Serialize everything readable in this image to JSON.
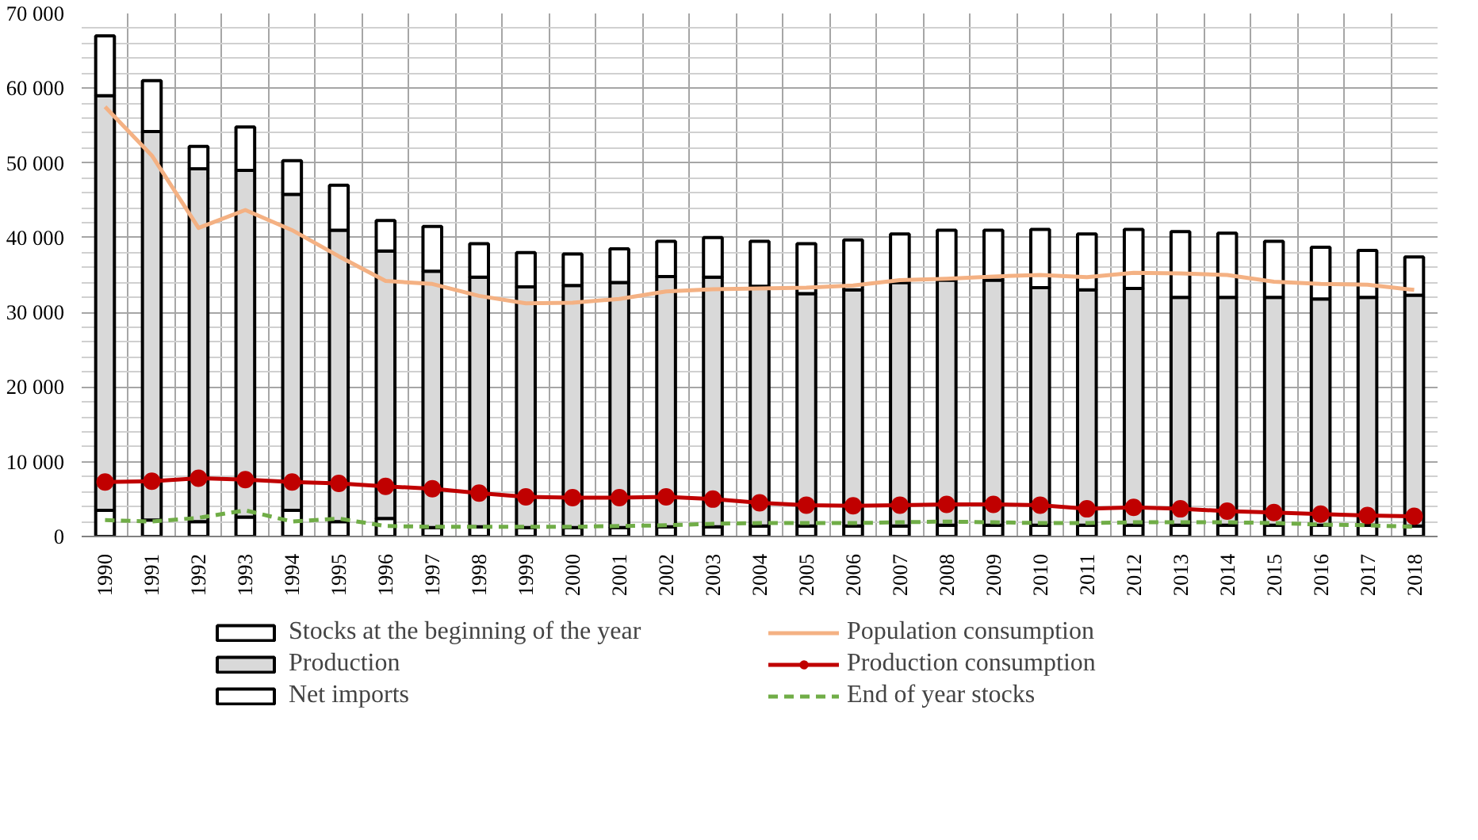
{
  "chart_data": {
    "type": "bar",
    "stacked": true,
    "categories": [
      "1990",
      "1991",
      "1992",
      "1993",
      "1994",
      "1995",
      "1996",
      "1997",
      "1998",
      "1999",
      "2000",
      "2001",
      "2002",
      "2003",
      "2004",
      "2005",
      "2006",
      "2007",
      "2008",
      "2009",
      "2010",
      "2011",
      "2012",
      "2013",
      "2014",
      "2015",
      "2016",
      "2017",
      "2018"
    ],
    "ylim": [
      0,
      70000
    ],
    "yticks": [
      {
        "value": 0,
        "label": "0"
      },
      {
        "value": 10000,
        "label": "10 000"
      },
      {
        "value": 20000,
        "label": "20 000"
      },
      {
        "value": 30000,
        "label": "30 000"
      },
      {
        "value": 40000,
        "label": "40 000"
      },
      {
        "value": 50000,
        "label": "50 000"
      },
      {
        "value": 60000,
        "label": "60 000"
      },
      {
        "value": 70000,
        "label": "70 000"
      }
    ],
    "grid": true,
    "legend": "bottom",
    "series": [
      {
        "name": "Stocks at the beginning of the year",
        "color": "#ffffff",
        "values": [
          3500,
          2200,
          2000,
          2600,
          3500,
          2000,
          2400,
          1200,
          1300,
          1200,
          1200,
          1200,
          1300,
          1300,
          1400,
          1400,
          1400,
          1400,
          1500,
          1500,
          1500,
          1500,
          1500,
          1500,
          1500,
          1500,
          1500,
          1500,
          1400
        ]
      },
      {
        "name": "Production",
        "color": "#d9d9d9",
        "values": [
          55500,
          52000,
          47200,
          46400,
          42300,
          39000,
          35800,
          34300,
          33400,
          32200,
          32400,
          32800,
          33500,
          33400,
          32100,
          31100,
          31600,
          32600,
          32800,
          32800,
          31800,
          31500,
          31700,
          30500,
          30500,
          30500,
          30300,
          30500,
          30900
        ]
      },
      {
        "name": "Net imports",
        "color": "#ffffff",
        "values": [
          8000,
          6800,
          3000,
          5800,
          4500,
          6000,
          4100,
          6000,
          4500,
          4600,
          4200,
          4500,
          4700,
          5300,
          6000,
          6700,
          6700,
          6500,
          6700,
          6700,
          7800,
          7500,
          7900,
          8800,
          8600,
          7500,
          6900,
          6300,
          5100
        ]
      },
      {
        "name": "Population consumption",
        "type": "line",
        "color": "#f4b183",
        "marker": "none",
        "line_style": "solid",
        "values": [
          57500,
          51000,
          41300,
          43700,
          41000,
          37500,
          34200,
          33800,
          32200,
          31200,
          31300,
          31800,
          32800,
          33100,
          33200,
          33300,
          33600,
          34300,
          34500,
          34800,
          35000,
          34700,
          35300,
          35200,
          35000,
          34100,
          33800,
          33700,
          33000
        ]
      },
      {
        "name": "Production consumption",
        "type": "line",
        "color": "#c00000",
        "marker": "circle",
        "line_style": "solid",
        "values": [
          7300,
          7400,
          7800,
          7600,
          7300,
          7100,
          6700,
          6400,
          5800,
          5300,
          5200,
          5200,
          5300,
          5000,
          4500,
          4200,
          4100,
          4200,
          4300,
          4300,
          4200,
          3700,
          3900,
          3700,
          3400,
          3200,
          3000,
          2800,
          2700
        ]
      },
      {
        "name": "End of year stocks",
        "type": "line",
        "color": "#70ad47",
        "marker": "none",
        "line_style": "dashed",
        "values": [
          2200,
          2000,
          2500,
          3500,
          2000,
          2400,
          1400,
          1300,
          1300,
          1300,
          1300,
          1400,
          1500,
          1700,
          1800,
          1800,
          1800,
          1900,
          2000,
          1900,
          1800,
          1800,
          1900,
          1900,
          1900,
          1800,
          1600,
          1500,
          1300
        ]
      }
    ]
  }
}
